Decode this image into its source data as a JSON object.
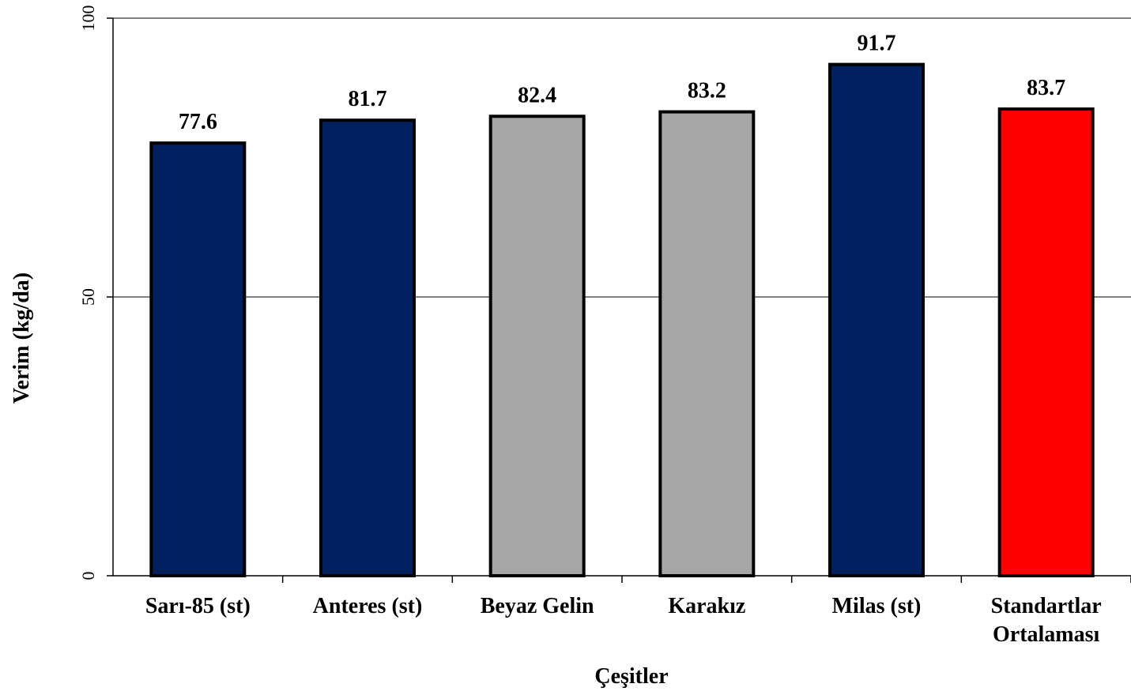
{
  "chart_data": {
    "type": "bar",
    "title": "",
    "xlabel": "Çeşitler",
    "ylabel": "Verim (kg/da)",
    "ylim": [
      0,
      100
    ],
    "yticks": [
      "0",
      "50",
      "100"
    ],
    "ytick_values": [
      0,
      50,
      100
    ],
    "grid": true,
    "categories": [
      [
        "Sarı-85 (st)"
      ],
      [
        "Anteres (st)"
      ],
      [
        "Beyaz Gelin"
      ],
      [
        "Karakız"
      ],
      [
        "Milas (st)"
      ],
      [
        "Standartlar",
        "Ortalaması"
      ]
    ],
    "values": [
      77.6,
      81.7,
      82.4,
      83.2,
      91.7,
      83.7
    ],
    "value_labels": [
      "77.6",
      "81.7",
      "82.4",
      "83.2",
      "91.7",
      "83.7"
    ],
    "colors": [
      "#002060",
      "#002060",
      "#a6a6a6",
      "#a6a6a6",
      "#002060",
      "#ff0000"
    ]
  }
}
